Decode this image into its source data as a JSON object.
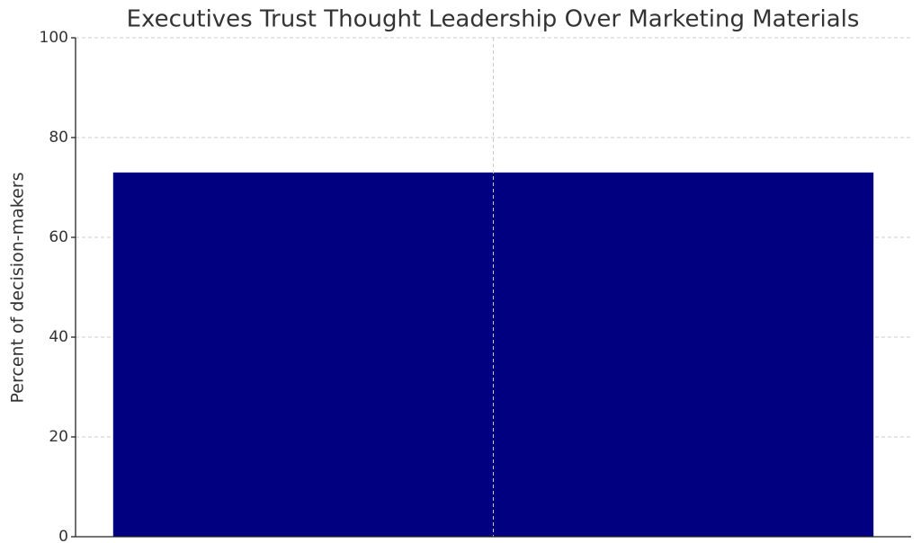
{
  "chart_data": {
    "type": "bar",
    "title": "Executives Trust Thought Leadership Over Marketing Materials",
    "ylabel": "Percent of decision-makers",
    "categories": [
      null
    ],
    "values": [
      73
    ],
    "color": "#000080",
    "ylim": [
      0,
      100
    ],
    "yticks": [
      0,
      20,
      40,
      60,
      80,
      100
    ],
    "grid": true
  }
}
